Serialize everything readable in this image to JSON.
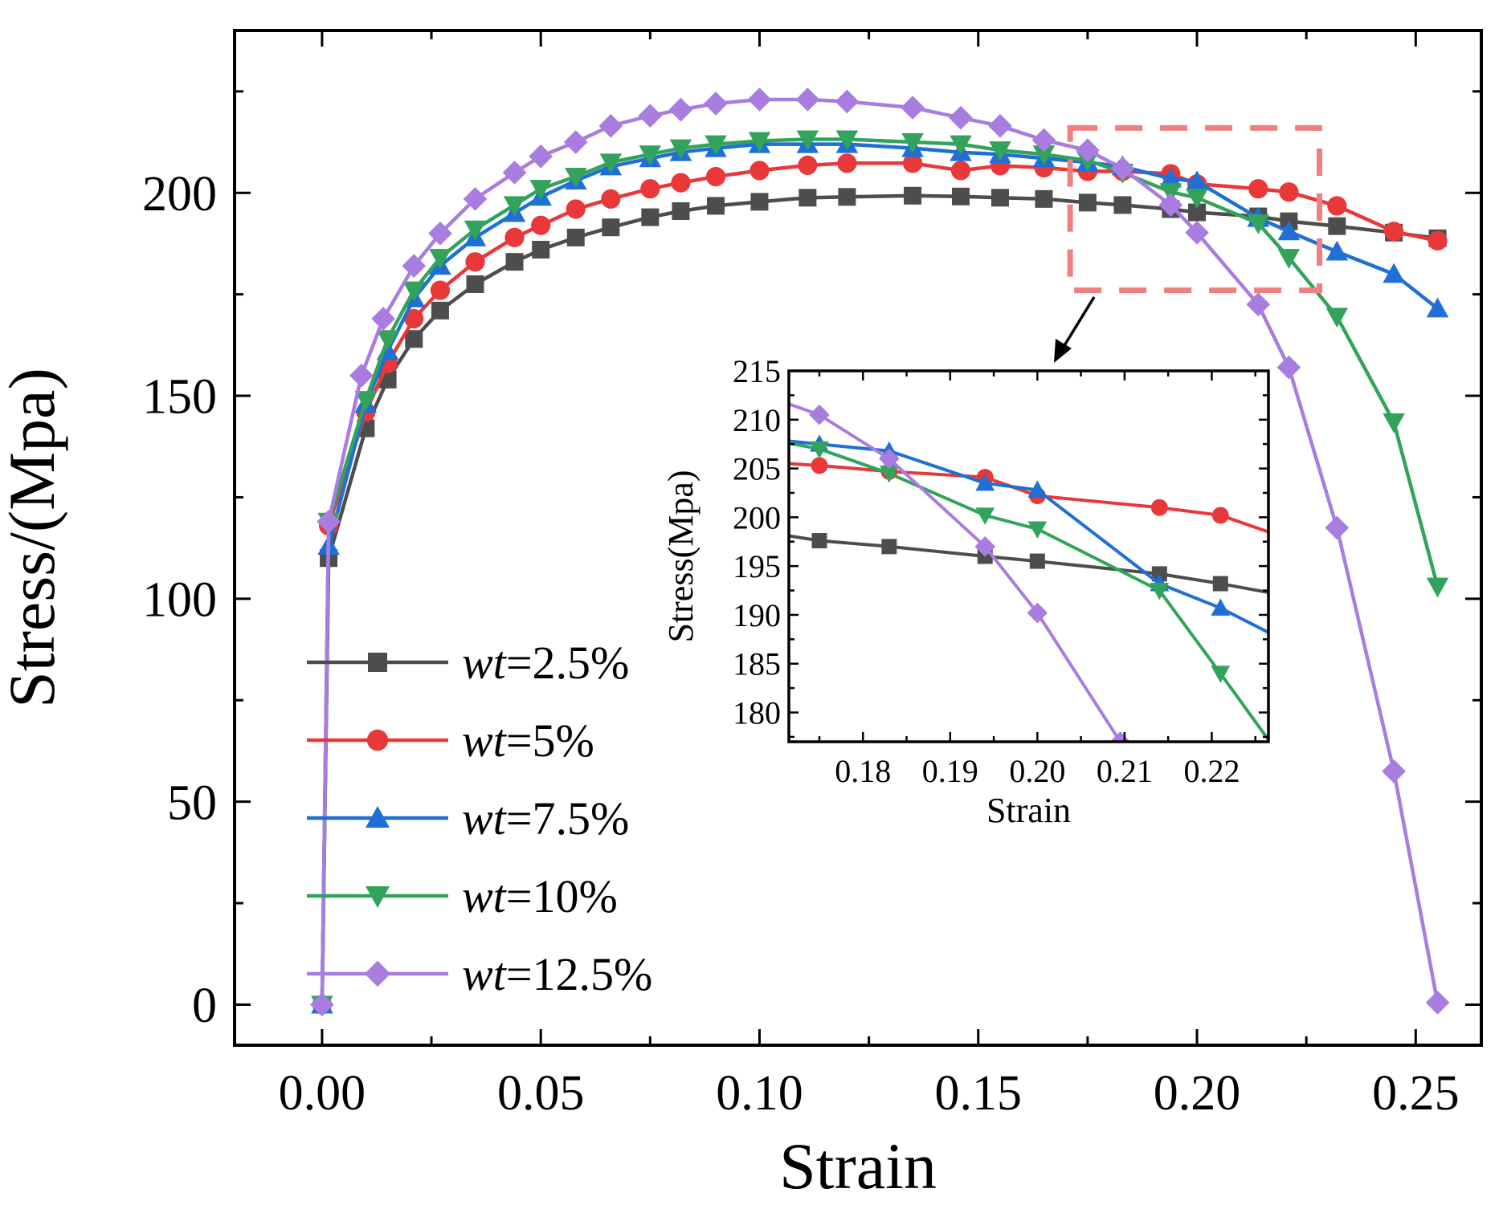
{
  "chart_data": [
    {
      "type": "line",
      "title": "",
      "xlabel": "Strain",
      "ylabel": "Stress/(Mpa)",
      "xlim": [
        -0.02,
        0.265
      ],
      "ylim": [
        -10,
        240
      ],
      "xticks": [
        0.0,
        0.05,
        0.1,
        0.15,
        0.2,
        0.25
      ],
      "xtick_labels": [
        "0.00",
        "0.05",
        "0.10",
        "0.15",
        "0.20",
        "0.25"
      ],
      "yticks": [
        0,
        50,
        100,
        150,
        200
      ],
      "ytick_labels": [
        "0",
        "50",
        "100",
        "150",
        "200"
      ],
      "grid": false,
      "legend_position": "lower-left",
      "series": [
        {
          "name": "wt=2.5%",
          "legend_prefix": "wt",
          "legend_suffix": "=2.5%",
          "color": "#4d4d4d",
          "marker": "square",
          "x": [
            0,
            0.0015,
            0.01,
            0.015,
            0.021,
            0.027,
            0.035,
            0.044,
            0.05,
            0.058,
            0.066,
            0.075,
            0.082,
            0.09,
            0.1,
            0.111,
            0.12,
            0.135,
            0.146,
            0.155,
            0.165,
            0.175,
            0.183,
            0.194,
            0.2,
            0.214,
            0.221,
            0.232,
            0.245,
            0.255
          ],
          "y": [
            0,
            110,
            142,
            154,
            164,
            171,
            177.5,
            183,
            186,
            189,
            191.5,
            194,
            195.5,
            196.8,
            197.8,
            198.8,
            199,
            199.3,
            199.1,
            198.8,
            198.5,
            197.6,
            197,
            196,
            195.2,
            194.2,
            193,
            191.8,
            190.2,
            188.8
          ]
        },
        {
          "name": "wt=5%",
          "legend_prefix": "wt",
          "legend_suffix": "=5%",
          "color": "#e8383a",
          "marker": "circle",
          "x": [
            0,
            0.0015,
            0.01,
            0.015,
            0.021,
            0.027,
            0.035,
            0.044,
            0.05,
            0.058,
            0.066,
            0.075,
            0.082,
            0.09,
            0.1,
            0.111,
            0.12,
            0.135,
            0.146,
            0.155,
            0.165,
            0.175,
            0.183,
            0.194,
            0.2,
            0.214,
            0.221,
            0.232,
            0.245,
            0.255
          ],
          "y": [
            0,
            118,
            146,
            158,
            169,
            176,
            183,
            189,
            192,
            196,
            198.5,
            201,
            202.5,
            204,
            205.5,
            206.8,
            207.3,
            207.3,
            205.5,
            206.7,
            206.2,
            205.3,
            205.3,
            204.7,
            202.2,
            201,
            200.2,
            196.8,
            190.5,
            188.2
          ]
        },
        {
          "name": "wt=7.5%",
          "legend_prefix": "wt",
          "legend_suffix": "=7.5%",
          "color": "#1f6fd6",
          "marker": "triangle-up",
          "x": [
            0,
            0.0015,
            0.01,
            0.015,
            0.021,
            0.027,
            0.035,
            0.044,
            0.05,
            0.058,
            0.066,
            0.075,
            0.082,
            0.09,
            0.1,
            0.111,
            0.12,
            0.135,
            0.146,
            0.155,
            0.165,
            0.175,
            0.183,
            0.194,
            0.2,
            0.214,
            0.221,
            0.232,
            0.245,
            0.255
          ],
          "y": [
            0,
            113,
            148,
            161,
            174,
            182,
            189,
            195,
            199,
            203,
            206.5,
            208.5,
            210,
            211,
            212,
            212,
            212,
            211,
            210,
            209.5,
            208.5,
            207.5,
            206.5,
            203.5,
            202.8,
            193.8,
            190.5,
            185.5,
            180,
            171.5
          ]
        },
        {
          "name": "wt=10%",
          "legend_prefix": "wt",
          "legend_suffix": "=10%",
          "color": "#33a35c",
          "marker": "triangle-down",
          "x": [
            0,
            0.0015,
            0.01,
            0.015,
            0.021,
            0.027,
            0.035,
            0.044,
            0.05,
            0.058,
            0.066,
            0.075,
            0.082,
            0.09,
            0.1,
            0.111,
            0.12,
            0.135,
            0.146,
            0.155,
            0.165,
            0.175,
            0.183,
            0.194,
            0.2,
            0.214,
            0.221,
            0.232,
            0.245,
            0.255
          ],
          "y": [
            0,
            119,
            149,
            164,
            176,
            184,
            191,
            197,
            201,
            204,
            207.5,
            209.5,
            211,
            212,
            212.8,
            213.2,
            213.2,
            212.5,
            212,
            210.5,
            209.5,
            208,
            205,
            200.2,
            198.8,
            192.5,
            184,
            169.5,
            143.5,
            103
          ]
        },
        {
          "name": "wt=12.5%",
          "legend_prefix": "wt",
          "legend_suffix": "=12.5%",
          "color": "#a97ce0",
          "marker": "diamond",
          "x": [
            0,
            0.0015,
            0.009,
            0.014,
            0.021,
            0.027,
            0.035,
            0.044,
            0.05,
            0.058,
            0.066,
            0.075,
            0.082,
            0.09,
            0.1,
            0.111,
            0.12,
            0.135,
            0.146,
            0.155,
            0.165,
            0.175,
            0.183,
            0.194,
            0.2,
            0.214,
            0.221,
            0.232,
            0.245,
            0.255
          ],
          "y": [
            0,
            119,
            155,
            169,
            182,
            190,
            198.5,
            205,
            209,
            212.5,
            216.5,
            219,
            220.5,
            222,
            223,
            223,
            222.5,
            221,
            218.5,
            216.5,
            213,
            210.5,
            206,
            197,
            190.2,
            172.5,
            157,
            117.5,
            57.5,
            0.5
          ]
        }
      ]
    },
    {
      "type": "line",
      "title": "",
      "xlabel": "Strain",
      "ylabel": "Stress(Mpa)",
      "xlim": [
        0.1715,
        0.2265
      ],
      "ylim": [
        177,
        215
      ],
      "xticks": [
        0.18,
        0.19,
        0.2,
        0.21,
        0.22
      ],
      "xtick_labels": [
        "0.18",
        "0.19",
        "0.20",
        "0.21",
        "0.22"
      ],
      "yticks": [
        180,
        185,
        190,
        195,
        200,
        205,
        210,
        215
      ],
      "ytick_labels": [
        "180",
        "185",
        "190",
        "195",
        "200",
        "205",
        "210",
        "215"
      ],
      "grid": false,
      "legend_position": "none",
      "series": [
        {
          "name": "wt=2.5%",
          "color": "#4d4d4d",
          "marker": "square",
          "x": [
            0.1715,
            0.175,
            0.183,
            0.194,
            0.2,
            0.214,
            0.221,
            0.2265
          ],
          "y": [
            198.1,
            197.6,
            197,
            196,
            195.5,
            194.2,
            193.2,
            192.3
          ]
        },
        {
          "name": "wt=5%",
          "color": "#e8383a",
          "marker": "circle",
          "x": [
            0.1715,
            0.175,
            0.183,
            0.194,
            0.2,
            0.214,
            0.221,
            0.2265
          ],
          "y": [
            205.5,
            205.3,
            204.7,
            204.1,
            202.2,
            201,
            200.2,
            198.5
          ]
        },
        {
          "name": "wt=7.5%",
          "color": "#1f6fd6",
          "marker": "triangle-up",
          "x": [
            0.1715,
            0.175,
            0.183,
            0.194,
            0.2,
            0.214,
            0.221,
            0.2265
          ],
          "y": [
            207.8,
            207.5,
            206.8,
            203.5,
            202.8,
            193.2,
            190.7,
            188.2
          ]
        },
        {
          "name": "wt=10%",
          "color": "#33a35c",
          "marker": "triangle-down",
          "x": [
            0.1715,
            0.175,
            0.183,
            0.194,
            0.2,
            0.214,
            0.221,
            0.2265
          ],
          "y": [
            207.6,
            207,
            204.5,
            200.2,
            198.8,
            192.5,
            184,
            177.2
          ]
        },
        {
          "name": "wt=12.5%",
          "color": "#a97ce0",
          "marker": "diamond",
          "x": [
            0.1715,
            0.175,
            0.183,
            0.194,
            0.2,
            0.2095
          ],
          "y": [
            211.6,
            210.5,
            206,
            197,
            190.2,
            177
          ]
        }
      ]
    }
  ],
  "zoom_box": {
    "x0": 0.171,
    "x1": 0.228,
    "y0": 176,
    "y1": 216,
    "color": "#f08080"
  }
}
